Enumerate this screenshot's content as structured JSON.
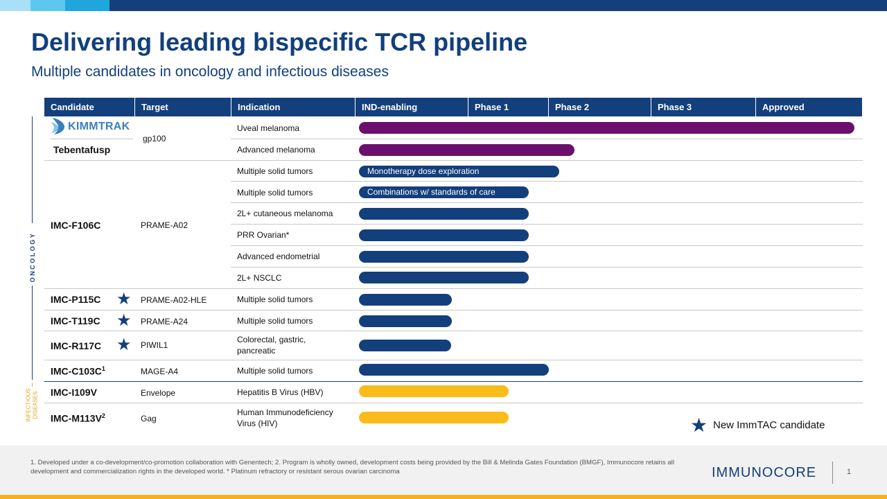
{
  "title": "Delivering leading bispecific TCR pipeline",
  "subtitle": "Multiple candidates in oncology and infectious diseases",
  "colors": {
    "navy": "#133f7c",
    "purple": "#6c0f6c",
    "gold": "#f9bc1b",
    "top_light": "#a9e0f7",
    "top_mid": "#5fc7ef",
    "top_accent": "#1fa7dc"
  },
  "table": {
    "headers": [
      "Candidate",
      "Target",
      "Indication",
      "IND-enabling",
      "Phase 1",
      "Phase 2",
      "Phase 3",
      "Approved"
    ],
    "stage_scale": [
      "IND-enabling",
      "Phase 1",
      "Phase 2",
      "Phase 3",
      "Approved"
    ],
    "candidates": [
      {
        "name": "Tebentafusp",
        "logo": "KIMMTRAK",
        "sup": "",
        "target": "gp100",
        "star": false
      },
      {
        "name": "IMC-F106C",
        "sup": "",
        "target": "PRAME-A02",
        "star": false
      },
      {
        "name": "IMC-P115C",
        "sup": "",
        "target": "PRAME-A02-HLE",
        "star": true
      },
      {
        "name": "IMC-T119C",
        "sup": "",
        "target": "PRAME-A24",
        "star": true
      },
      {
        "name": "IMC-R117C",
        "sup": "",
        "target": "PIWIL1",
        "star": true
      },
      {
        "name": "IMC-C103C",
        "sup": "1",
        "target": "MAGE-A4",
        "star": false
      },
      {
        "name": "IMC-I109V",
        "sup": "",
        "target": "Envelope",
        "star": false
      },
      {
        "name": "IMC-M113V",
        "sup": "2",
        "target": "Gag",
        "star": false
      }
    ],
    "rows": [
      {
        "indication": "Uveal  melanoma",
        "progress": 5.0,
        "color": "purple",
        "bar_label": ""
      },
      {
        "indication": "Advanced  melanoma",
        "progress": 2.25,
        "color": "purple",
        "bar_label": ""
      },
      {
        "indication": "Multiple solid tumors",
        "progress": 2.1,
        "color": "navy",
        "bar_label": "Monotherapy  dose exploration"
      },
      {
        "indication": "Multiple solid tumors",
        "progress": 1.75,
        "color": "navy",
        "bar_label": "Combinations  w/ standards of care"
      },
      {
        "indication": "2L+ cutaneous melanoma",
        "progress": 1.75,
        "color": "navy",
        "bar_label": ""
      },
      {
        "indication": "PRR Ovarian*",
        "progress": 1.75,
        "color": "navy",
        "bar_label": ""
      },
      {
        "indication": "Advanced  endometrial",
        "progress": 1.75,
        "color": "navy",
        "bar_label": ""
      },
      {
        "indication": "2L+ NSCLC",
        "progress": 1.75,
        "color": "navy",
        "bar_label": ""
      },
      {
        "indication": "Multiple solid tumors",
        "progress": 0.85,
        "color": "navy",
        "bar_label": ""
      },
      {
        "indication": "Multiple solid tumors",
        "progress": 0.85,
        "color": "navy",
        "bar_label": ""
      },
      {
        "indication": "Colorectal,  gastric, pancreatic",
        "progress": 0.84,
        "color": "navy",
        "bar_label": ""
      },
      {
        "indication": "Multiple solid tumors",
        "progress": 2.0,
        "color": "navy",
        "bar_label": ""
      },
      {
        "indication": "Hepatitis B Virus (HBV)",
        "progress": 1.5,
        "color": "gold",
        "bar_label": ""
      },
      {
        "indication": "Human Immunodeficiency Virus (HIV)",
        "progress": 1.5,
        "color": "gold",
        "bar_label": ""
      }
    ]
  },
  "side_labels": {
    "oncology": "ONCOLOGY",
    "infectious_1": "INFECTIOUS",
    "infectious_2": "DISEASES"
  },
  "legend": {
    "icon": "star-icon",
    "text": "New ImmTAC candidate"
  },
  "footnote": "1. Developed under a co-development/co-promotion collaboration with Genentech; 2. Program is wholly owned, development costs being provided by the Bill  & Melinda Gates Foundation  (BMGF), Immunocore retains all development and commercialization rights in the developed world. * Platinum  refractory or resistant serous ovarian carcinoma",
  "brand": "IMMUNOCORE",
  "page_number": "1"
}
